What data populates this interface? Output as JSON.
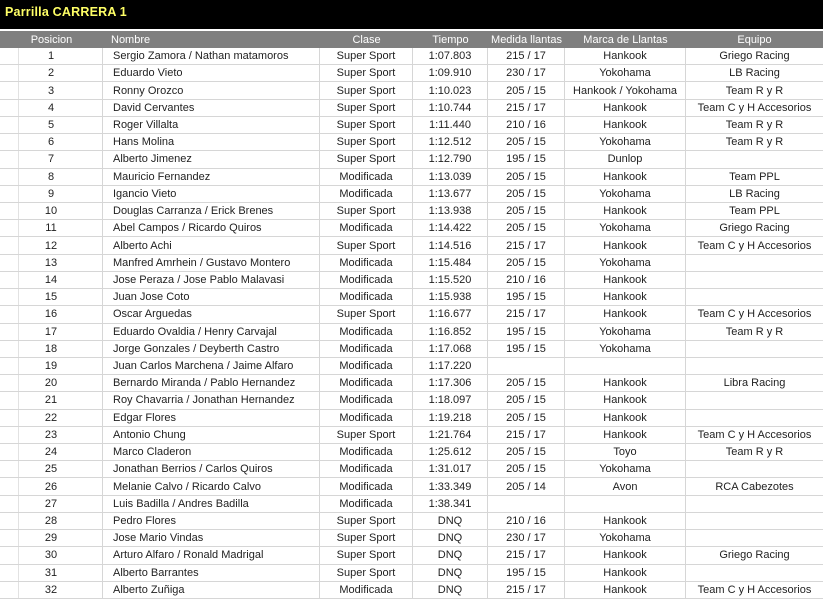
{
  "title": "Parrilla CARRERA 1",
  "colors": {
    "title_bar_bg": "#000000",
    "title_text": "#FFFF66",
    "header_bg": "#7F7F7F",
    "header_text": "#FFFFFF",
    "grid_line": "#D6D6D6",
    "cell_text": "#1F1F1F",
    "row_bg": "#FFFFFF"
  },
  "table": {
    "headers": [
      "Posicion",
      "Nombre",
      "Clase",
      "Tiempo",
      "Medida llantas",
      "Marca de Llantas",
      "Equipo"
    ],
    "rows": [
      [
        "1",
        "Sergio Zamora / Nathan matamoros",
        "Super Sport",
        "1:07.803",
        "215 / 17",
        "Hankook",
        "Griego Racing"
      ],
      [
        "2",
        "Eduardo Vieto",
        "Super Sport",
        "1:09.910",
        "230 / 17",
        "Yokohama",
        "LB Racing"
      ],
      [
        "3",
        "Ronny Orozco",
        "Super Sport",
        "1:10.023",
        "205 / 15",
        "Hankook / Yokohama",
        "Team R y R"
      ],
      [
        "4",
        "David Cervantes",
        "Super Sport",
        "1:10.744",
        "215 / 17",
        "Hankook",
        "Team C y H Accesorios"
      ],
      [
        "5",
        "Roger Villalta",
        "Super Sport",
        "1:11.440",
        "210 / 16",
        "Hankook",
        "Team R y R"
      ],
      [
        "6",
        "Hans Molina",
        "Super Sport",
        "1:12.512",
        "205 / 15",
        "Yokohama",
        "Team R y R"
      ],
      [
        "7",
        "Alberto Jimenez",
        "Super Sport",
        "1:12.790",
        "195 / 15",
        "Dunlop",
        ""
      ],
      [
        "8",
        "Mauricio Fernandez",
        "Modificada",
        "1:13.039",
        "205 / 15",
        "Hankook",
        "Team PPL"
      ],
      [
        "9",
        "Igancio Vieto",
        "Modificada",
        "1:13.677",
        "205 / 15",
        "Yokohama",
        "LB Racing"
      ],
      [
        "10",
        "Douglas Carranza / Erick Brenes",
        "Super Sport",
        "1:13.938",
        "205 / 15",
        "Hankook",
        "Team PPL"
      ],
      [
        "11",
        "Abel Campos / Ricardo Quiros",
        "Modificada",
        "1:14.422",
        "205 / 15",
        "Yokohama",
        "Griego Racing"
      ],
      [
        "12",
        "Alberto Achi",
        "Super Sport",
        "1:14.516",
        "215 / 17",
        "Hankook",
        "Team C y H Accesorios"
      ],
      [
        "13",
        "Manfred Amrhein / Gustavo Montero",
        "Modificada",
        "1:15.484",
        "205 / 15",
        "Yokohama",
        ""
      ],
      [
        "14",
        "Jose Peraza / Jose Pablo Malavasi",
        "Modificada",
        "1:15.520",
        "210 / 16",
        "Hankook",
        ""
      ],
      [
        "15",
        "Juan Jose Coto",
        "Modificada",
        "1:15.938",
        "195 / 15",
        "Hankook",
        ""
      ],
      [
        "16",
        "Oscar Arguedas",
        "Super Sport",
        "1:16.677",
        "215 / 17",
        "Hankook",
        "Team C y H Accesorios"
      ],
      [
        "17",
        "Eduardo Ovaldia / Henry Carvajal",
        "Modificada",
        "1:16.852",
        "195 / 15",
        "Yokohama",
        "Team R y R"
      ],
      [
        "18",
        "Jorge Gonzales / Deyberth Castro",
        "Modificada",
        "1:17.068",
        "195 / 15",
        "Yokohama",
        ""
      ],
      [
        "19",
        "Juan Carlos Marchena / Jaime Alfaro",
        "Modificada",
        "1:17.220",
        "",
        "",
        ""
      ],
      [
        "20",
        "Bernardo Miranda / Pablo Hernandez",
        "Modificada",
        "1:17.306",
        "205 / 15",
        "Hankook",
        "Libra Racing"
      ],
      [
        "21",
        "Roy Chavarria / Jonathan Hernandez",
        "Modificada",
        "1:18.097",
        "205 / 15",
        "Hankook",
        ""
      ],
      [
        "22",
        "Edgar Flores",
        "Modificada",
        "1:19.218",
        "205 / 15",
        "Hankook",
        ""
      ],
      [
        "23",
        "Antonio Chung",
        "Super Sport",
        "1:21.764",
        "215 / 17",
        "Hankook",
        "Team C y H Accesorios"
      ],
      [
        "24",
        "Marco Claderon",
        "Modificada",
        "1:25.612",
        "205 / 15",
        "Toyo",
        "Team R y R"
      ],
      [
        "25",
        "Jonathan Berrios / Carlos Quiros",
        "Modificada",
        "1:31.017",
        "205 / 15",
        "Yokohama",
        ""
      ],
      [
        "26",
        "Melanie Calvo / Ricardo Calvo",
        "Modificada",
        "1:33.349",
        "205 / 14",
        "Avon",
        "RCA Cabezotes"
      ],
      [
        "27",
        "Luis Badilla / Andres Badilla",
        "Modificada",
        "1:38.341",
        "",
        "",
        ""
      ],
      [
        "28",
        "Pedro Flores",
        "Super Sport",
        "DNQ",
        "210 / 16",
        "Hankook",
        ""
      ],
      [
        "29",
        "Jose Mario Vindas",
        "Super Sport",
        "DNQ",
        "230 / 17",
        "Yokohama",
        ""
      ],
      [
        "30",
        "Arturo Alfaro / Ronald Madrigal",
        "Super Sport",
        "DNQ",
        "215 / 17",
        "Hankook",
        "Griego Racing"
      ],
      [
        "31",
        "Alberto Barrantes",
        "Super Sport",
        "DNQ",
        "195 / 15",
        "Hankook",
        ""
      ],
      [
        "32",
        "Alberto Zuñiga",
        "Modificada",
        "DNQ",
        "215 / 17",
        "Hankook",
        "Team C y H Accesorios"
      ]
    ]
  }
}
